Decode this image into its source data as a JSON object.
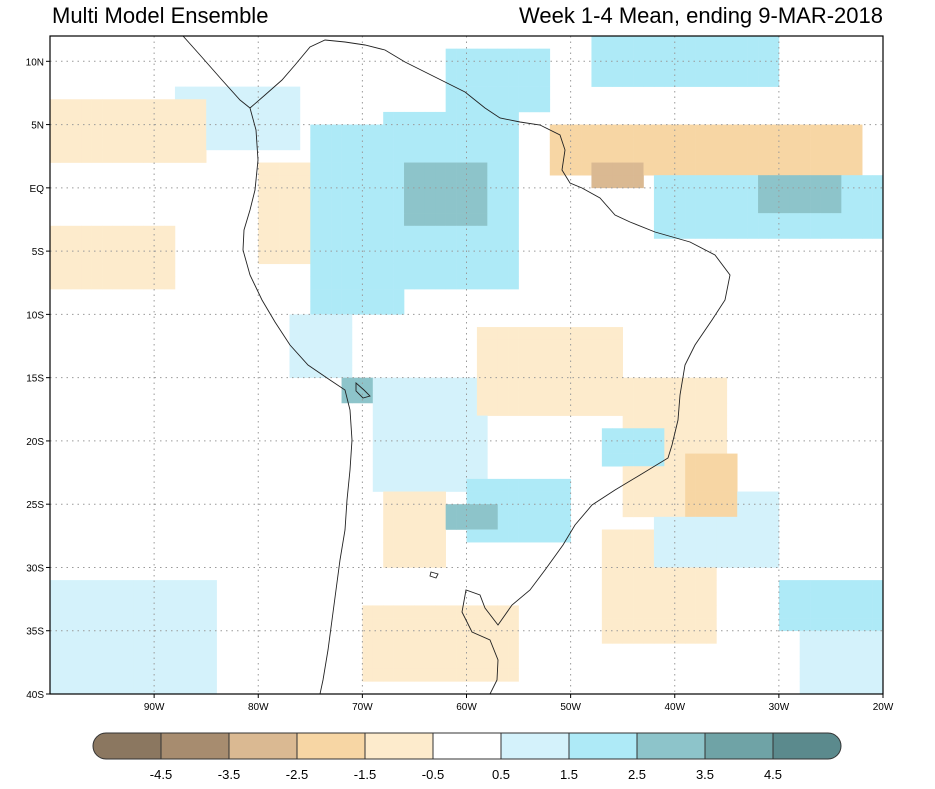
{
  "header": {
    "title_left": "Multi Model Ensemble",
    "title_right": "Week 1-4 Mean, ending 9-MAR-2018"
  },
  "map": {
    "lon_range": [
      -100,
      -20
    ],
    "lat_range": [
      -40,
      12
    ],
    "lat_ticks": [
      {
        "lat": 10,
        "label": "10N"
      },
      {
        "lat": 5,
        "label": "5N"
      },
      {
        "lat": 0,
        "label": "EQ"
      },
      {
        "lat": -5,
        "label": "5S"
      },
      {
        "lat": -10,
        "label": "10S"
      },
      {
        "lat": -15,
        "label": "15S"
      },
      {
        "lat": -20,
        "label": "20S"
      },
      {
        "lat": -25,
        "label": "25S"
      },
      {
        "lat": -30,
        "label": "30S"
      },
      {
        "lat": -35,
        "label": "35S"
      },
      {
        "lat": -40,
        "label": "40S"
      }
    ],
    "lon_ticks": [
      {
        "lon": -90,
        "label": "90W"
      },
      {
        "lon": -80,
        "label": "80W"
      },
      {
        "lon": -70,
        "label": "70W"
      },
      {
        "lon": -60,
        "label": "60W"
      },
      {
        "lon": -50,
        "label": "50W"
      },
      {
        "lon": -40,
        "label": "40W"
      },
      {
        "lon": -30,
        "label": "30W"
      },
      {
        "lon": -20,
        "label": "20W"
      }
    ],
    "regions": [
      {
        "lon": [
          -100,
          -85
        ],
        "lat": [
          2,
          7
        ],
        "value": -1.0
      },
      {
        "lon": [
          -100,
          -88
        ],
        "lat": [
          -8,
          -3
        ],
        "value": -1.2
      },
      {
        "lon": [
          -88,
          -76
        ],
        "lat": [
          3,
          8
        ],
        "value": 0.8
      },
      {
        "lon": [
          -80,
          -74
        ],
        "lat": [
          -6,
          2
        ],
        "value": -0.8
      },
      {
        "lon": [
          -75,
          -66
        ],
        "lat": [
          -10,
          5
        ],
        "value": 1.5
      },
      {
        "lon": [
          -68,
          -55
        ],
        "lat": [
          -8,
          6
        ],
        "value": 2.2
      },
      {
        "lon": [
          -66,
          -58
        ],
        "lat": [
          -3,
          2
        ],
        "value": 3.0
      },
      {
        "lon": [
          -62,
          -52
        ],
        "lat": [
          6,
          11
        ],
        "value": 2.0
      },
      {
        "lon": [
          -48,
          -30
        ],
        "lat": [
          8,
          12
        ],
        "value": 1.8
      },
      {
        "lon": [
          -52,
          -22
        ],
        "lat": [
          1,
          5
        ],
        "value": -2.0
      },
      {
        "lon": [
          -48,
          -43
        ],
        "lat": [
          0,
          2
        ],
        "value": -3.5
      },
      {
        "lon": [
          -42,
          -20
        ],
        "lat": [
          -4,
          1
        ],
        "value": 2.2
      },
      {
        "lon": [
          -32,
          -24
        ],
        "lat": [
          -2,
          1
        ],
        "value": 3.4
      },
      {
        "lon": [
          -59,
          -45
        ],
        "lat": [
          -18,
          -11
        ],
        "value": -1.4
      },
      {
        "lon": [
          -45,
          -35
        ],
        "lat": [
          -26,
          -15
        ],
        "value": -1.3
      },
      {
        "lon": [
          -39,
          -34
        ],
        "lat": [
          -26,
          -21
        ],
        "value": -2.5
      },
      {
        "lon": [
          -69,
          -58
        ],
        "lat": [
          -24,
          -15
        ],
        "value": 1.3
      },
      {
        "lon": [
          -60,
          -50
        ],
        "lat": [
          -28,
          -23
        ],
        "value": 2.0
      },
      {
        "lon": [
          -62,
          -57
        ],
        "lat": [
          -27,
          -25
        ],
        "value": 3.4
      },
      {
        "lon": [
          -47,
          -41
        ],
        "lat": [
          -22,
          -19
        ],
        "value": 2.2
      },
      {
        "lon": [
          -68,
          -62
        ],
        "lat": [
          -30,
          -23
        ],
        "value": -1.1
      },
      {
        "lon": [
          -70,
          -55
        ],
        "lat": [
          -39,
          -33
        ],
        "value": -1.2
      },
      {
        "lon": [
          -47,
          -36
        ],
        "lat": [
          -36,
          -27
        ],
        "value": -0.8
      },
      {
        "lon": [
          -42,
          -30
        ],
        "lat": [
          -30,
          -24
        ],
        "value": 1.3
      },
      {
        "lon": [
          -30,
          -20
        ],
        "lat": [
          -35,
          -31
        ],
        "value": 1.8
      },
      {
        "lon": [
          -100,
          -84
        ],
        "lat": [
          -40,
          -31
        ],
        "value": 0.9
      },
      {
        "lon": [
          -28,
          -20
        ],
        "lat": [
          -40,
          -35
        ],
        "value": 1.2
      },
      {
        "lon": [
          -77,
          -71
        ],
        "lat": [
          -15,
          -10
        ],
        "value": 1.3
      },
      {
        "lon": [
          -72,
          -69
        ],
        "lat": [
          -17,
          -15
        ],
        "value": 3.2
      }
    ]
  },
  "legend": {
    "colors": [
      "#8b7760",
      "#a78c6f",
      "#dab992",
      "#f7d6a4",
      "#fdebcc",
      "#ffffff",
      "#d4f2fb",
      "#aeeaf7",
      "#8dc4ca",
      "#6fa3a6",
      "#5b8a8d"
    ],
    "labels": [
      "-4.5",
      "-3.5",
      "-2.5",
      "-1.5",
      "-0.5",
      "0.5",
      "1.5",
      "2.5",
      "3.5",
      "4.5"
    ]
  }
}
